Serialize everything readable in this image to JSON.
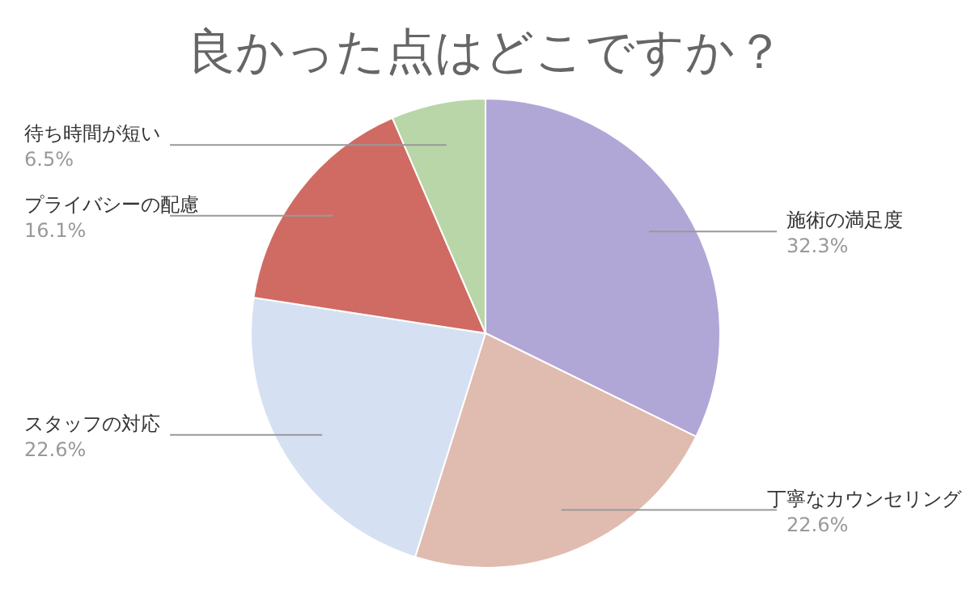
{
  "chart_data": {
    "type": "pie",
    "title": "良かった点はどこですか？",
    "categories": [
      "施術の満足度",
      "丁寧なカウンセリング",
      "スタッフの対応",
      "プライバシーの配慮",
      "待ち時間が短い"
    ],
    "values": [
      32.3,
      22.6,
      22.6,
      16.1,
      6.5
    ],
    "value_labels": [
      "32.3%",
      "22.6%",
      "22.6%",
      "16.1%",
      "6.5%"
    ],
    "colors": [
      "#b1a7d6",
      "#e0bbb0",
      "#d5e1f2",
      "#d06b63",
      "#b8d6a7"
    ]
  }
}
